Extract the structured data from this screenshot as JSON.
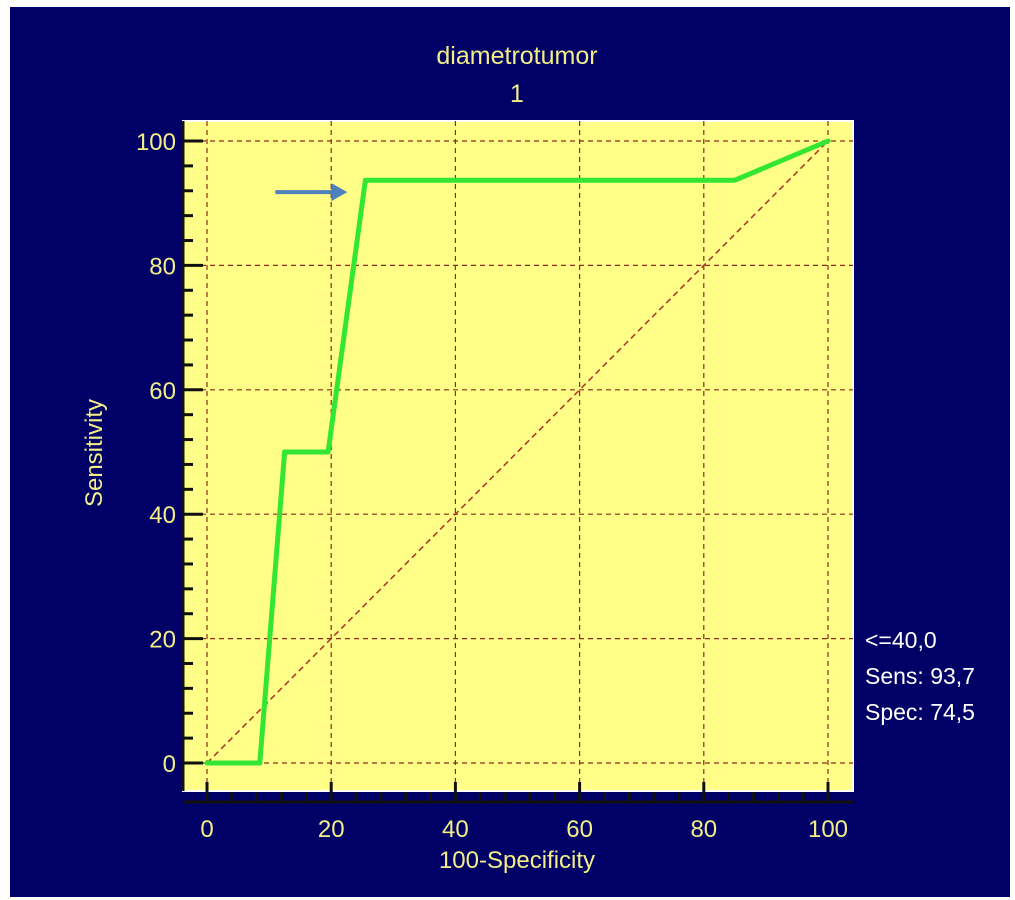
{
  "chart_data": {
    "type": "line",
    "title": "diametrotumor",
    "subtitle": "1",
    "xlabel": "100-Specificity",
    "ylabel": "Sensitivity",
    "xlim": [
      0,
      100
    ],
    "ylim": [
      0,
      100
    ],
    "xticks": [
      0,
      20,
      40,
      60,
      80,
      100
    ],
    "yticks": [
      0,
      20,
      40,
      60,
      80,
      100
    ],
    "grid": true,
    "series": [
      {
        "type": "line",
        "color": "#33e633",
        "x": [
          0,
          8.5,
          12.5,
          19.5,
          25.5,
          85,
          100
        ],
        "y": [
          0,
          0,
          50,
          50,
          93.7,
          93.7,
          100
        ]
      }
    ],
    "reference_line": {
      "x": [
        0,
        100
      ],
      "y": [
        0,
        100
      ],
      "color": "#b03a2e",
      "style": "dashed"
    },
    "annotation_arrow": {
      "target": [
        25.5,
        93.7
      ],
      "color": "#4f81bd"
    },
    "criterion": {
      "criterion": "<=40,0",
      "sens": "Sens: 93,7",
      "spec": "Spec: 74,5"
    },
    "colors": {
      "background": "#000066",
      "plot_area": "#ffff88",
      "text": "#f3ee88",
      "grid": "#8b2a1a"
    }
  }
}
